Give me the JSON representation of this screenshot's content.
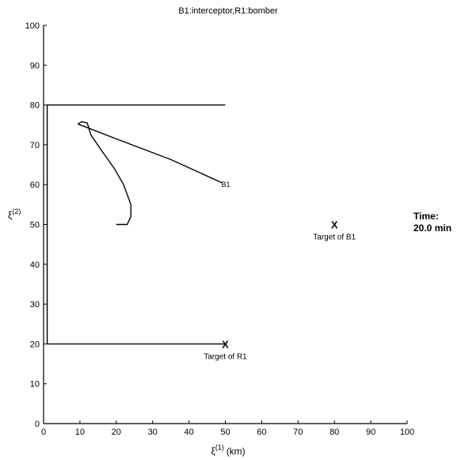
{
  "chart_data": {
    "type": "line",
    "title": "B1:interceptor,R1:bomber",
    "xlabel": "ξ(1) (km)",
    "xlabel_main": "ξ",
    "xlabel_sup": "(1)",
    "xlabel_unit": "(km)",
    "ylabel": "ξ(2)",
    "ylabel_main": "ξ",
    "ylabel_sup": "(2)",
    "xlim": [
      0,
      100
    ],
    "ylim": [
      0,
      100
    ],
    "xticks": [
      0,
      10,
      20,
      30,
      40,
      50,
      60,
      70,
      80,
      90,
      100
    ],
    "yticks": [
      0,
      10,
      20,
      30,
      40,
      50,
      60,
      70,
      80,
      90,
      100
    ],
    "grid": false,
    "series": [
      {
        "name": "B1",
        "role": "interceptor",
        "points": [
          [
            20,
            50
          ],
          [
            23,
            50
          ],
          [
            24,
            52
          ],
          [
            24,
            55
          ],
          [
            22,
            60
          ],
          [
            19.5,
            64
          ],
          [
            16,
            68.5
          ],
          [
            13,
            72.5
          ],
          [
            12,
            75.5
          ],
          [
            10.5,
            75.8
          ],
          [
            9.5,
            75.2
          ],
          [
            20,
            71.5
          ],
          [
            35,
            66.3
          ],
          [
            49,
            60.5
          ]
        ]
      },
      {
        "name": "R1",
        "role": "bomber",
        "points": [
          [
            50,
            80
          ],
          [
            1,
            80
          ],
          [
            1,
            20
          ],
          [
            50,
            20
          ]
        ]
      }
    ],
    "annotations": [
      {
        "label": "B1",
        "x": 50,
        "y": 60
      },
      {
        "marker": "X",
        "x": 80,
        "y": 50,
        "label": "Target of B1"
      },
      {
        "marker": "X",
        "x": 50,
        "y": 20,
        "label": "Target of R1"
      }
    ]
  },
  "time_panel": {
    "label": "Time:",
    "value": "20.0 min"
  }
}
